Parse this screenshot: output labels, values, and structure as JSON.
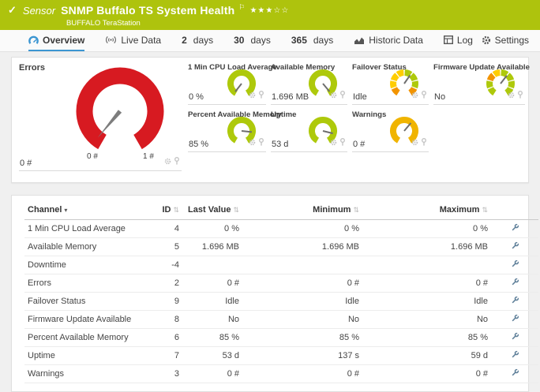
{
  "colors": {
    "header_status_green": "#aec30d",
    "accent_blue": "#3c96d2",
    "gauge_green": "#aec90b",
    "gauge_red": "#d71a21",
    "gauge_yellow": "#f0b400",
    "gauge_orange": "#f29400",
    "gauge_segment_yellow": "#ffcd00",
    "needle_gray": "#7d7d7d"
  },
  "icons": {
    "check_glyph": "✓",
    "flag_glyph": "⚐",
    "star_filled": "★",
    "star_empty": "☆",
    "sort_both": "⇅",
    "sort_active": "▾"
  },
  "titlebar": {
    "kicker": "Sensor",
    "title": "SNMP Buffalo TS System Health",
    "stars_filled": 3,
    "stars_total": 5,
    "subtitle": "BUFFALO TeraStation"
  },
  "tabs": [
    {
      "id": "overview",
      "label": "Overview",
      "icon": "gauge",
      "active": true
    },
    {
      "id": "live-data",
      "label": "Live Data",
      "icon": "signal",
      "active": false
    },
    {
      "id": "2-days",
      "num": "2",
      "unit": "days",
      "active": false
    },
    {
      "id": "30-days",
      "num": "30",
      "unit": "days",
      "active": false
    },
    {
      "id": "365-days",
      "num": "365",
      "unit": "days",
      "active": false
    },
    {
      "id": "historic-data",
      "label": "Historic Data",
      "icon": "chart",
      "active": false
    },
    {
      "id": "log",
      "label": "Log",
      "icon": "table",
      "active": false
    },
    {
      "id": "settings",
      "label": "Settings",
      "icon": "gear",
      "active": false
    }
  ],
  "gauges": {
    "big": {
      "title": "Errors",
      "value": "0 #",
      "min_label": "0 #",
      "max_label": "1 #",
      "style": "solid",
      "color": "#d71a21",
      "needle_deg": 220
    },
    "small": [
      {
        "id": "cpu-load",
        "title": "1 Min CPU Load Average",
        "value": "0 %",
        "style": "solid",
        "color": "#aec90b",
        "needle_deg": 218
      },
      {
        "id": "available-memory",
        "title": "Available Memory",
        "value": "1.696 MB",
        "style": "solid",
        "color": "#aec90b",
        "needle_deg": 140
      },
      {
        "id": "failover-status",
        "title": "Failover Status",
        "value": "Idle",
        "style": "segments",
        "segments": [
          "#f29400",
          "#ffcd00",
          "#ffcd00",
          "#ffcd00",
          "#aec90b",
          "#aec90b",
          "#aec90b",
          "#f29400"
        ],
        "needle_deg": 35
      },
      {
        "id": "firmware-update",
        "title": "Firmware Update Available",
        "value": "No",
        "style": "segments",
        "segments": [
          "#aec90b",
          "#aec90b",
          "#f29400",
          "#ffcd00",
          "#aec90b",
          "#aec90b",
          "#aec90b",
          "#aec90b"
        ],
        "needle_deg": 38
      },
      {
        "id": "percent-available-memory",
        "title": "Percent Available Memory",
        "value": "85 %",
        "style": "solid",
        "color": "#aec90b",
        "needle_deg": 96
      },
      {
        "id": "uptime",
        "title": "Uptime",
        "value": "53 d",
        "style": "solid",
        "color": "#aec90b",
        "needle_deg": 104
      },
      {
        "id": "warnings",
        "title": "Warnings",
        "value": "0 #",
        "style": "solid",
        "color": "#f0b400",
        "needle_deg": 40
      }
    ]
  },
  "table": {
    "columns": [
      {
        "id": "channel",
        "label": "Channel",
        "sort": "active"
      },
      {
        "id": "id",
        "label": "ID",
        "sort": "both"
      },
      {
        "id": "last-value",
        "label": "Last Value",
        "sort": "both"
      },
      {
        "id": "minimum",
        "label": "Minimum",
        "sort": "both"
      },
      {
        "id": "maximum",
        "label": "Maximum",
        "sort": "both"
      },
      {
        "id": "tools",
        "label": "",
        "sort": null
      }
    ],
    "rows": [
      {
        "channel": "1 Min CPU Load Average",
        "id": "4",
        "last": "0 %",
        "min": "0 %",
        "max": "0 %"
      },
      {
        "channel": "Available Memory",
        "id": "5",
        "last": "1.696 MB",
        "min": "1.696 MB",
        "max": "1.696 MB"
      },
      {
        "channel": "Downtime",
        "id": "-4",
        "last": "",
        "min": "",
        "max": ""
      },
      {
        "channel": "Errors",
        "id": "2",
        "last": "0 #",
        "min": "0 #",
        "max": "0 #"
      },
      {
        "channel": "Failover Status",
        "id": "9",
        "last": "Idle",
        "min": "Idle",
        "max": "Idle"
      },
      {
        "channel": "Firmware Update Available",
        "id": "8",
        "last": "No",
        "min": "No",
        "max": "No"
      },
      {
        "channel": "Percent Available Memory",
        "id": "6",
        "last": "85 %",
        "min": "85 %",
        "max": "85 %"
      },
      {
        "channel": "Uptime",
        "id": "7",
        "last": "53 d",
        "min": "137 s",
        "max": "59 d"
      },
      {
        "channel": "Warnings",
        "id": "3",
        "last": "0 #",
        "min": "0 #",
        "max": "0 #"
      }
    ]
  }
}
